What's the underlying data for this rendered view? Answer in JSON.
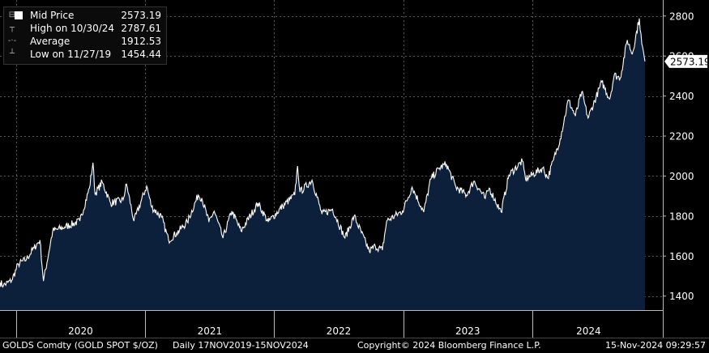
{
  "colors": {
    "background": "#000000",
    "area_fill": "#0c1f3b",
    "line": "#ffffff",
    "grid": "#5a5a5a",
    "text": "#ffffff",
    "tag_bg": "#ffffff",
    "tag_text": "#000000"
  },
  "legend": {
    "series_label": "Mid Price",
    "series_value": "2573.19",
    "high_label": "High on 10/30/24",
    "high_value": "2787.61",
    "avg_label": "Average",
    "avg_value": "1912.53",
    "low_label": "Low on 11/27/19",
    "low_value": "1454.44"
  },
  "last_price_tag": "2573.19",
  "footer": {
    "security": "GOLDS Comdty (GOLD SPOT $/OZ)",
    "range": "Daily 17NOV2019-15NOV2024",
    "copyright": "Copyright© 2024 Bloomberg Finance L.P.",
    "timestamp": "15-Nov-2024 09:29:57"
  },
  "chart_data": {
    "type": "area",
    "title": "",
    "xlabel": "",
    "ylabel": "",
    "ylim": [
      1330,
      2880
    ],
    "yticks": [
      1400,
      1600,
      1800,
      2000,
      2200,
      2400,
      2600,
      2800
    ],
    "xticks": [
      "2020",
      "2021",
      "2022",
      "2023",
      "2024"
    ],
    "x_range": [
      "2019-11-17",
      "2024-11-15"
    ],
    "grid": true,
    "series": [
      {
        "name": "Mid Price",
        "points": [
          [
            "2019-11-17",
            1468
          ],
          [
            "2019-11-27",
            1454
          ],
          [
            "2019-12-20",
            1478
          ],
          [
            "2020-01-08",
            1560
          ],
          [
            "2020-01-31",
            1585
          ],
          [
            "2020-02-21",
            1640
          ],
          [
            "2020-03-09",
            1680
          ],
          [
            "2020-03-19",
            1475
          ],
          [
            "2020-04-14",
            1725
          ],
          [
            "2020-05-18",
            1745
          ],
          [
            "2020-06-30",
            1775
          ],
          [
            "2020-07-27",
            1940
          ],
          [
            "2020-08-06",
            2067
          ],
          [
            "2020-08-12",
            1910
          ],
          [
            "2020-09-01",
            1970
          ],
          [
            "2020-09-25",
            1865
          ],
          [
            "2020-10-30",
            1880
          ],
          [
            "2020-11-09",
            1960
          ],
          [
            "2020-11-30",
            1775
          ],
          [
            "2021-01-05",
            1950
          ],
          [
            "2021-01-19",
            1845
          ],
          [
            "2021-02-16",
            1795
          ],
          [
            "2021-03-08",
            1680
          ],
          [
            "2021-03-31",
            1715
          ],
          [
            "2021-04-30",
            1770
          ],
          [
            "2021-05-31",
            1905
          ],
          [
            "2021-06-10",
            1890
          ],
          [
            "2021-06-30",
            1770
          ],
          [
            "2021-07-15",
            1825
          ],
          [
            "2021-08-09",
            1690
          ],
          [
            "2021-09-03",
            1825
          ],
          [
            "2021-09-29",
            1725
          ],
          [
            "2021-11-16",
            1865
          ],
          [
            "2021-12-15",
            1770
          ],
          [
            "2022-01-25",
            1850
          ],
          [
            "2022-02-28",
            1905
          ],
          [
            "2022-03-08",
            2050
          ],
          [
            "2022-03-15",
            1920
          ],
          [
            "2022-04-18",
            1980
          ],
          [
            "2022-05-16",
            1810
          ],
          [
            "2022-06-15",
            1835
          ],
          [
            "2022-07-20",
            1690
          ],
          [
            "2022-08-15",
            1800
          ],
          [
            "2022-09-27",
            1625
          ],
          [
            "2022-10-14",
            1650
          ],
          [
            "2022-11-03",
            1630
          ],
          [
            "2022-11-15",
            1775
          ],
          [
            "2022-12-30",
            1825
          ],
          [
            "2023-01-26",
            1945
          ],
          [
            "2023-02-28",
            1820
          ],
          [
            "2023-03-20",
            1985
          ],
          [
            "2023-04-13",
            2040
          ],
          [
            "2023-05-03",
            2060
          ],
          [
            "2023-05-30",
            1945
          ],
          [
            "2023-06-29",
            1905
          ],
          [
            "2023-07-20",
            1975
          ],
          [
            "2023-08-21",
            1888
          ],
          [
            "2023-09-01",
            1940
          ],
          [
            "2023-10-05",
            1820
          ],
          [
            "2023-10-27",
            2005
          ],
          [
            "2023-12-04",
            2075
          ],
          [
            "2023-12-13",
            1985
          ],
          [
            "2024-01-31",
            2040
          ],
          [
            "2024-02-14",
            1990
          ],
          [
            "2024-03-01",
            2080
          ],
          [
            "2024-03-20",
            2185
          ],
          [
            "2024-04-12",
            2380
          ],
          [
            "2024-05-02",
            2300
          ],
          [
            "2024-05-20",
            2420
          ],
          [
            "2024-06-07",
            2290
          ],
          [
            "2024-07-16",
            2470
          ],
          [
            "2024-08-07",
            2385
          ],
          [
            "2024-08-20",
            2505
          ],
          [
            "2024-09-06",
            2490
          ],
          [
            "2024-09-26",
            2680
          ],
          [
            "2024-10-10",
            2610
          ],
          [
            "2024-10-30",
            2788
          ],
          [
            "2024-11-06",
            2660
          ],
          [
            "2024-11-15",
            2573
          ]
        ]
      }
    ]
  }
}
